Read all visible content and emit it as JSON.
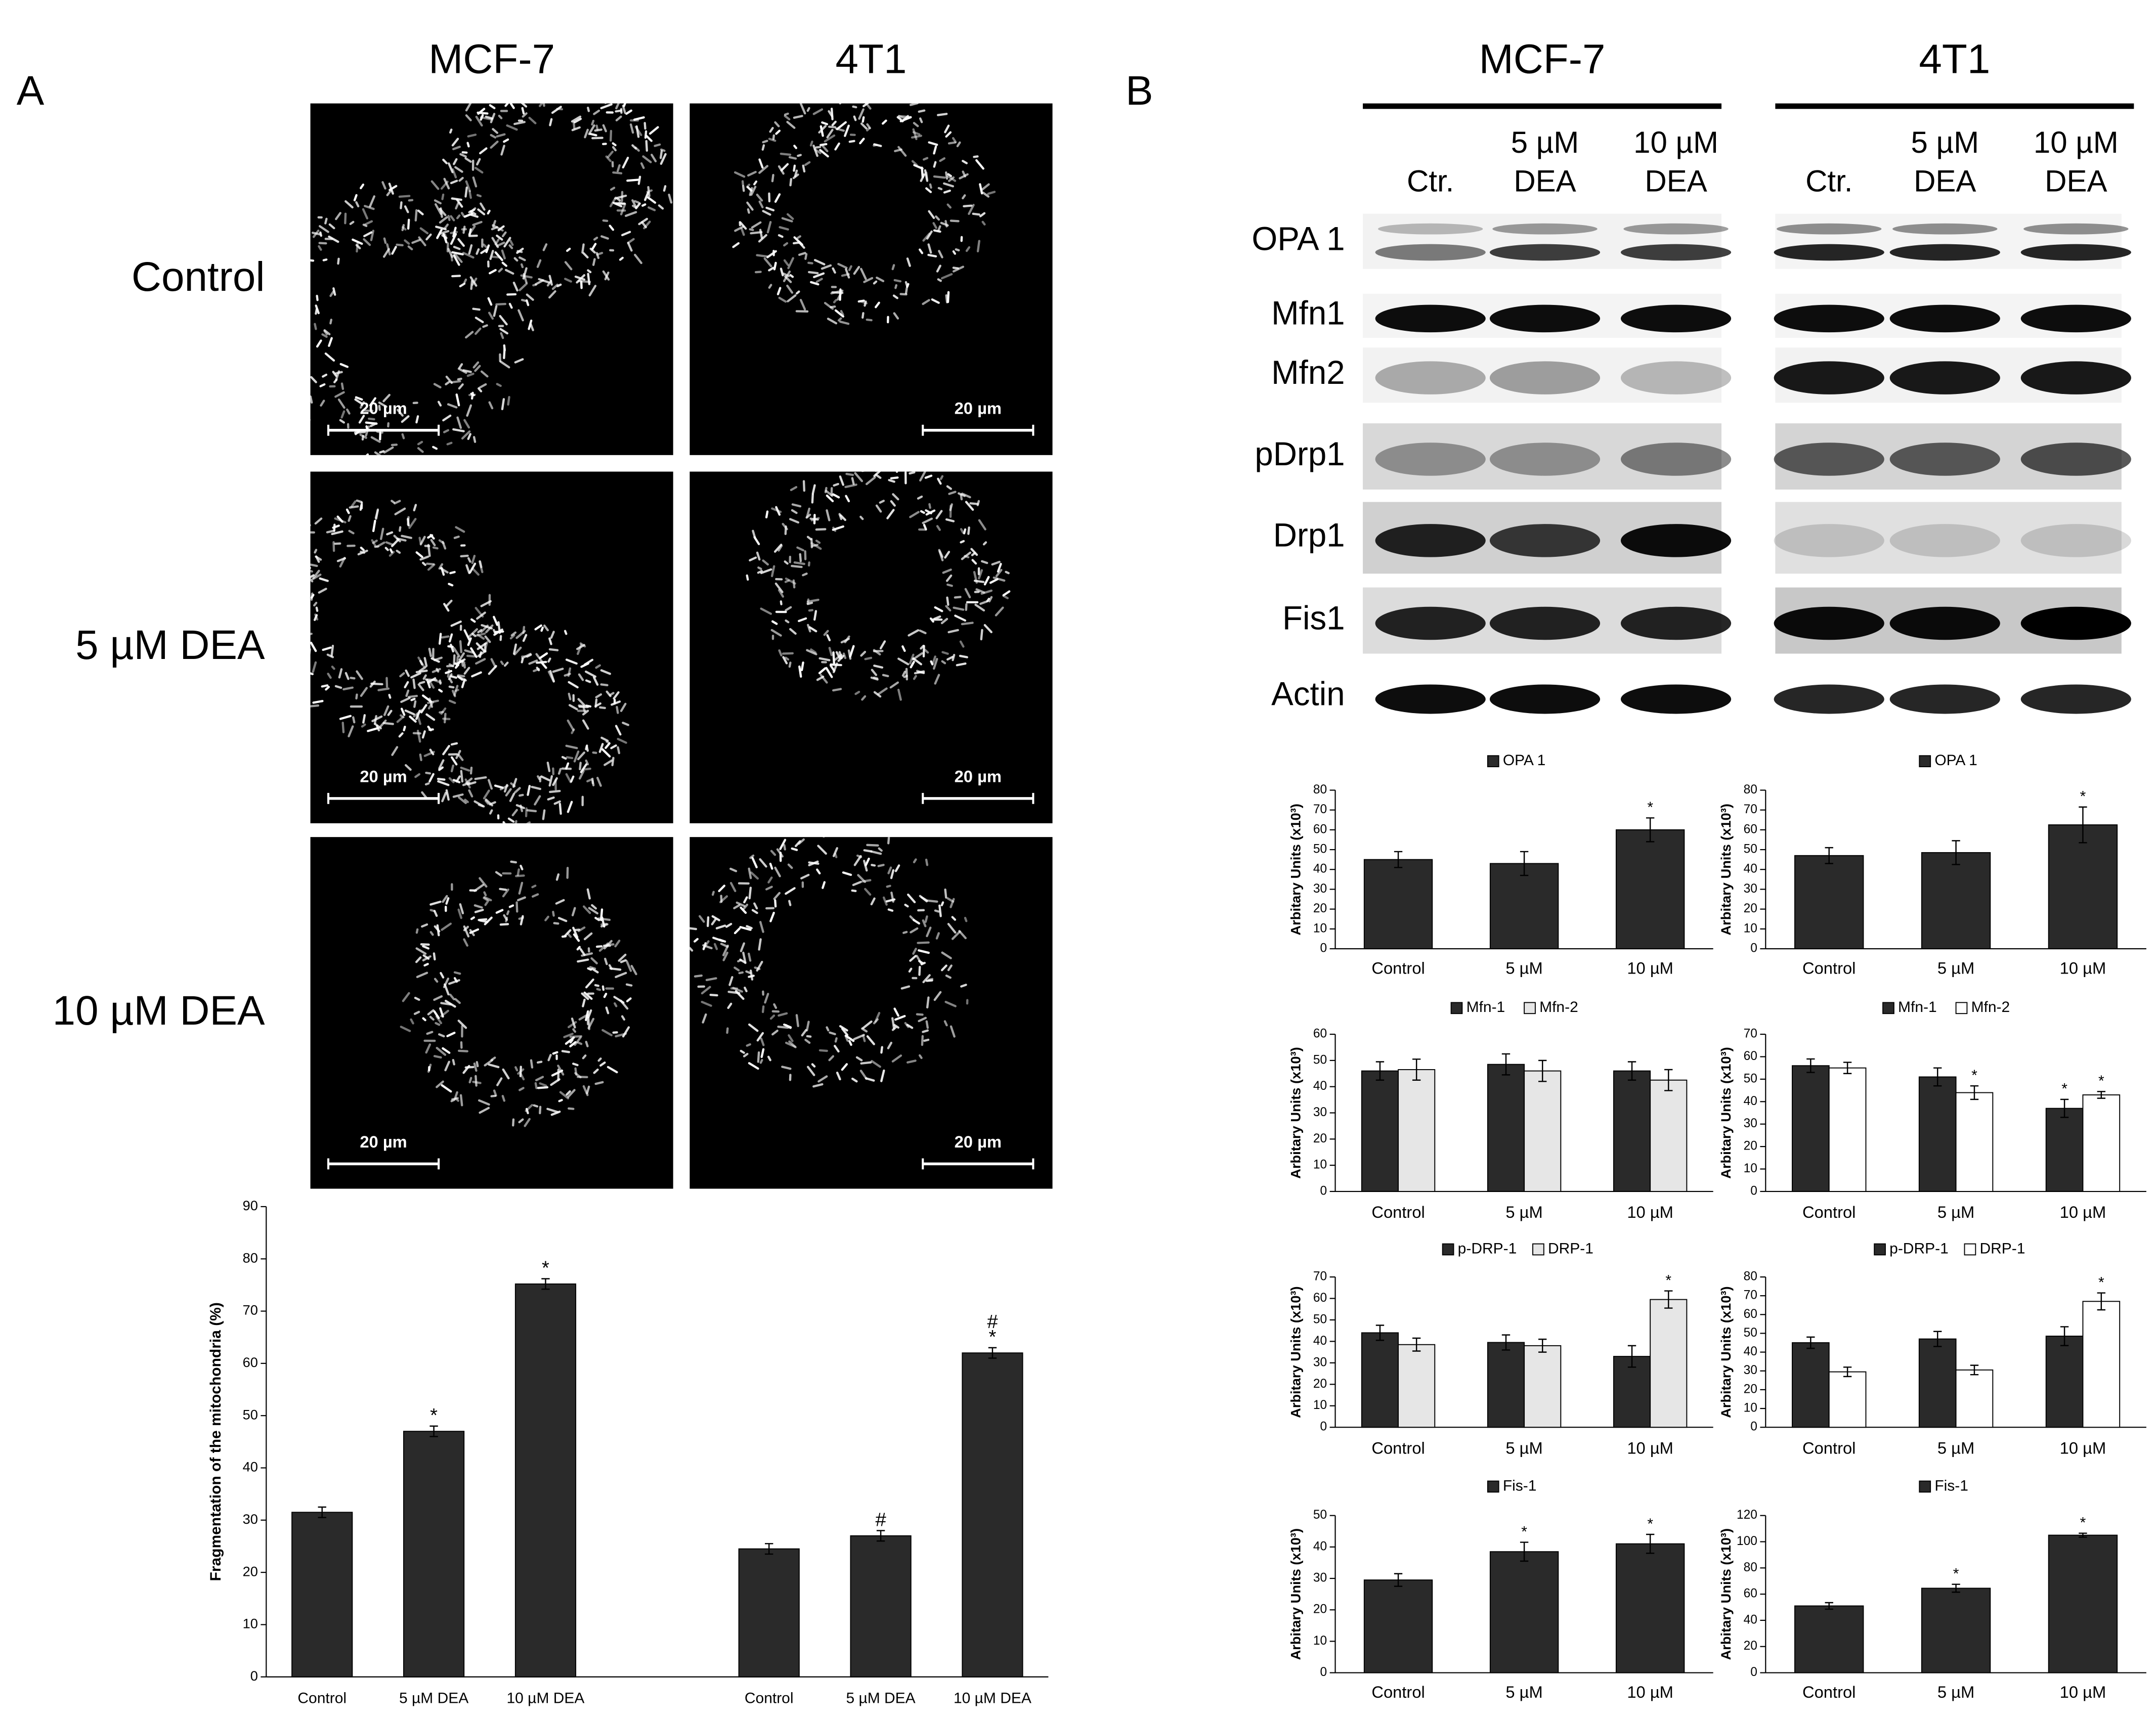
{
  "panel_a": {
    "label": "A",
    "columns": [
      "MCF-7",
      "4T1"
    ],
    "rows": [
      "Control",
      "5 µM DEA",
      "10 µM DEA"
    ],
    "scale_bar": "20 µm"
  },
  "panel_b": {
    "label": "B",
    "groups": [
      "MCF-7",
      "4T1"
    ],
    "lanes": [
      [
        "Ctr."
      ],
      [
        "5 µM",
        "DEA"
      ],
      [
        "10 µM",
        "DEA"
      ]
    ],
    "proteins": [
      "OPA 1",
      "Mfn1",
      "Mfn2",
      "pDrp1",
      "Drp1",
      "Fis1",
      "Actin"
    ]
  },
  "chart_data": [
    {
      "type": "bar",
      "y_label": "Fragmentation of the mitochondria (%)",
      "categories": [
        "Control",
        "5 µM DEA",
        "10 µM DEA",
        null,
        "Control",
        "5 µM DEA",
        "10 µM DEA"
      ],
      "series": [
        {
          "color": "#2a2a2a",
          "values": [
            31.5,
            47,
            75.2,
            null,
            24.5,
            27,
            62
          ],
          "errors": [
            1,
            1,
            1,
            null,
            1,
            1,
            1
          ],
          "marks": [
            null,
            [
              "*"
            ],
            [
              "*"
            ],
            null,
            null,
            [
              "#"
            ],
            [
              "#",
              "*"
            ]
          ]
        }
      ],
      "ylim": [
        0,
        90
      ],
      "yticks": [
        0,
        10,
        20,
        30,
        40,
        50,
        60,
        70,
        80,
        90
      ]
    },
    {
      "type": "bar",
      "y_label": "Arbitary Units (x10³)",
      "categories": [
        "Control",
        "5 µM",
        "10 µM"
      ],
      "series": [
        {
          "name": "OPA 1",
          "color": "#2a2a2a",
          "values": [
            45,
            43,
            60
          ],
          "errors": [
            4,
            6,
            6
          ],
          "marks": [
            null,
            null,
            [
              "*"
            ]
          ]
        }
      ],
      "ylim": [
        0,
        80
      ],
      "yticks": [
        0,
        10,
        20,
        30,
        40,
        50,
        60,
        70,
        80
      ]
    },
    {
      "type": "bar",
      "y_label": "Arbitary Units (x10³)",
      "categories": [
        "Control",
        "5 µM",
        "10 µM"
      ],
      "series": [
        {
          "name": "OPA 1",
          "color": "#2a2a2a",
          "values": [
            47,
            48.5,
            62.5
          ],
          "errors": [
            4,
            6,
            9
          ],
          "marks": [
            null,
            null,
            [
              "*"
            ]
          ]
        }
      ],
      "ylim": [
        0,
        80
      ],
      "yticks": [
        0,
        10,
        20,
        30,
        40,
        50,
        60,
        70,
        80
      ]
    },
    {
      "type": "bar",
      "y_label": "Arbitary Units (x10³)",
      "categories": [
        "Control",
        "5 µM",
        "10 µM"
      ],
      "series": [
        {
          "name": "Mfn-1",
          "color": "#2a2a2a",
          "values": [
            46,
            48.5,
            46
          ],
          "errors": [
            3.5,
            4,
            3.5
          ],
          "marks": [
            null,
            null,
            null
          ]
        },
        {
          "name": "Mfn-2",
          "color": "#e6e6e6",
          "values": [
            46.5,
            46,
            42.5
          ],
          "errors": [
            4,
            4,
            4
          ],
          "marks": [
            null,
            null,
            null
          ]
        }
      ],
      "ylim": [
        0,
        60
      ],
      "yticks": [
        0,
        10,
        20,
        30,
        40,
        50,
        60
      ]
    },
    {
      "type": "bar",
      "y_label": "Arbitary Units (x10³)",
      "categories": [
        "Control",
        "5 µM",
        "10 µM"
      ],
      "series": [
        {
          "name": "Mfn-1",
          "color": "#2a2a2a",
          "values": [
            56,
            51,
            37
          ],
          "errors": [
            3,
            4,
            4
          ],
          "marks": [
            null,
            null,
            [
              "*"
            ]
          ]
        },
        {
          "name": "Mfn-2",
          "color": "#ffffff",
          "values": [
            55,
            44,
            43
          ],
          "errors": [
            2.5,
            3,
            1.5
          ],
          "marks": [
            null,
            [
              "*"
            ],
            [
              "*"
            ]
          ]
        }
      ],
      "ylim": [
        0,
        70
      ],
      "yticks": [
        0,
        10,
        20,
        30,
        40,
        50,
        60,
        70
      ]
    },
    {
      "type": "bar",
      "y_label": "Arbitary Units (x10³)",
      "categories": [
        "Control",
        "5 µM",
        "10 µM"
      ],
      "series": [
        {
          "name": "p-DRP-1",
          "color": "#2a2a2a",
          "values": [
            44,
            39.5,
            33
          ],
          "errors": [
            3.5,
            3.5,
            5
          ],
          "marks": [
            null,
            null,
            null
          ]
        },
        {
          "name": "DRP-1",
          "color": "#e6e6e6",
          "values": [
            38.5,
            38,
            59.5
          ],
          "errors": [
            3,
            3,
            4
          ],
          "marks": [
            null,
            null,
            [
              "*"
            ]
          ]
        }
      ],
      "ylim": [
        0,
        70
      ],
      "yticks": [
        0,
        10,
        20,
        30,
        40,
        50,
        60,
        70
      ]
    },
    {
      "type": "bar",
      "y_label": "Arbitary Units (x10³)",
      "categories": [
        "Control",
        "5 µM",
        "10 µM"
      ],
      "series": [
        {
          "name": "p-DRP-1",
          "color": "#2a2a2a",
          "values": [
            45,
            47,
            48.5
          ],
          "errors": [
            3,
            4,
            5
          ],
          "marks": [
            null,
            null,
            null
          ]
        },
        {
          "name": "DRP-1",
          "color": "#ffffff",
          "values": [
            29.5,
            30.5,
            67
          ],
          "errors": [
            2.5,
            2.5,
            4.5
          ],
          "marks": [
            null,
            null,
            [
              "*"
            ]
          ]
        }
      ],
      "ylim": [
        0,
        80
      ],
      "yticks": [
        0,
        10,
        20,
        30,
        40,
        50,
        60,
        70,
        80
      ]
    },
    {
      "type": "bar",
      "y_label": "Arbitary Units (x10³)",
      "categories": [
        "Control",
        "5 µM",
        "10 µM"
      ],
      "series": [
        {
          "name": "Fis-1",
          "color": "#2a2a2a",
          "values": [
            29.5,
            38.5,
            41
          ],
          "errors": [
            2,
            3,
            3
          ],
          "marks": [
            null,
            [
              "*"
            ],
            [
              "*"
            ]
          ]
        }
      ],
      "ylim": [
        0,
        50
      ],
      "yticks": [
        0,
        10,
        20,
        30,
        40,
        50
      ]
    },
    {
      "type": "bar",
      "y_label": "Arbitary Units (x10³)",
      "categories": [
        "Control",
        "5 µM",
        "10 µM"
      ],
      "series": [
        {
          "name": "Fis-1",
          "color": "#2a2a2a",
          "values": [
            51,
            64.5,
            105
          ],
          "errors": [
            2.5,
            3,
            1.5
          ],
          "marks": [
            null,
            [
              "*"
            ],
            [
              "*"
            ]
          ]
        }
      ],
      "ylim": [
        0,
        120
      ],
      "yticks": [
        0,
        20,
        40,
        60,
        80,
        100,
        120
      ]
    }
  ]
}
